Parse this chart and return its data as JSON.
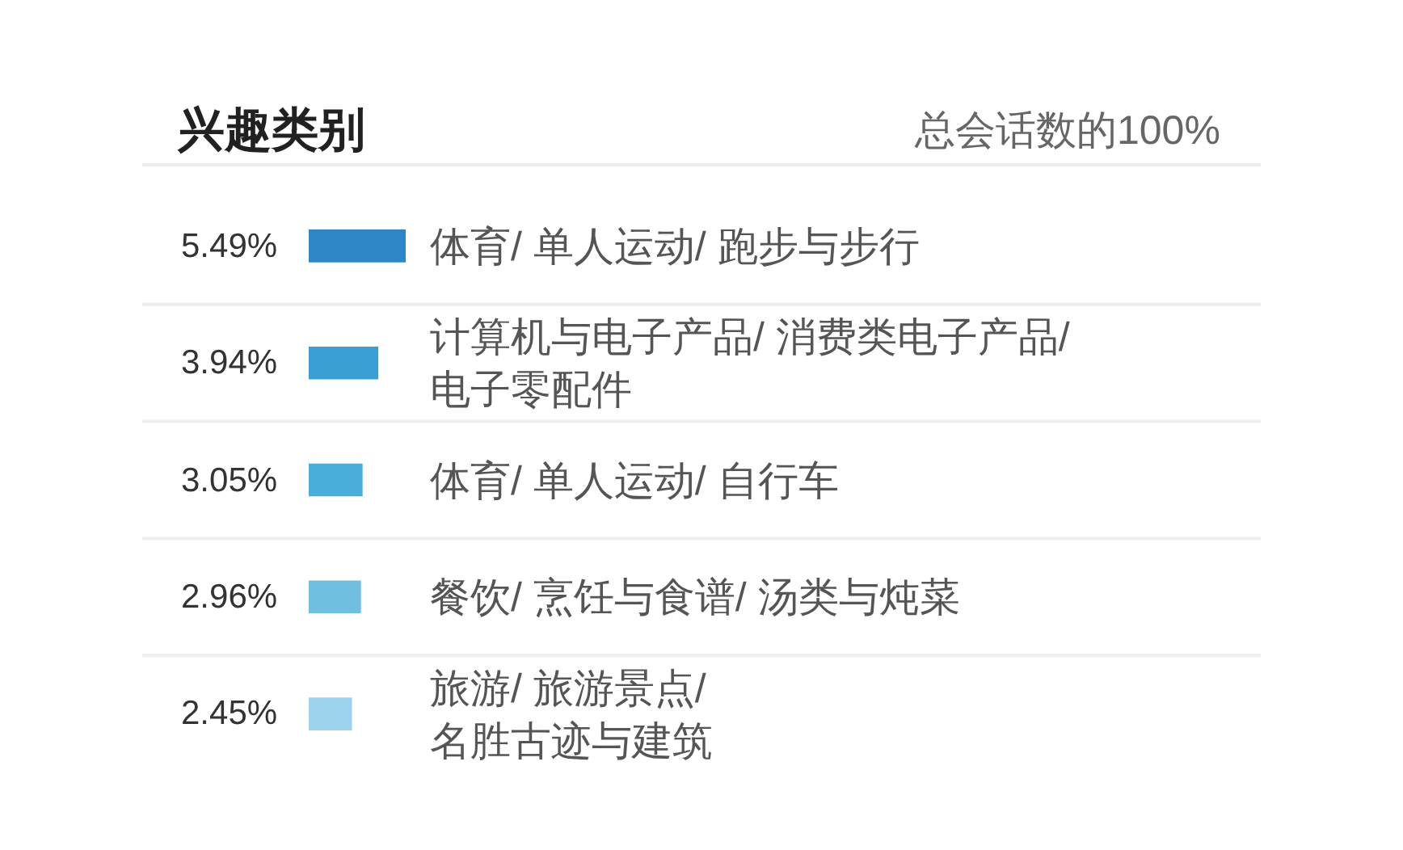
{
  "chart_data": {
    "type": "bar",
    "orientation": "horizontal",
    "title": "兴趣类别",
    "annotations": [
      "总会话数的100%"
    ],
    "categories": [
      "体育/ 单人运动/ 跑步与步行",
      "计算机与电子产品/ 消费类电子产品/ 电子零配件",
      "体育/ 单人运动/ 自行车",
      "餐饮/ 烹饪与食谱/ 汤类与炖菜",
      "旅游/ 旅游景点/ 名胜古迹与建筑"
    ],
    "values": [
      5.49,
      3.94,
      3.05,
      2.96,
      2.45
    ],
    "colors": [
      "#2e86c6",
      "#3a9fd3",
      "#4aadd9",
      "#70bfe0",
      "#9dd3ec"
    ],
    "value_labels": [
      "5.49%",
      "3.94%",
      "3.05%",
      "2.96%",
      "2.45%"
    ],
    "tick_labels": "y"
  }
}
